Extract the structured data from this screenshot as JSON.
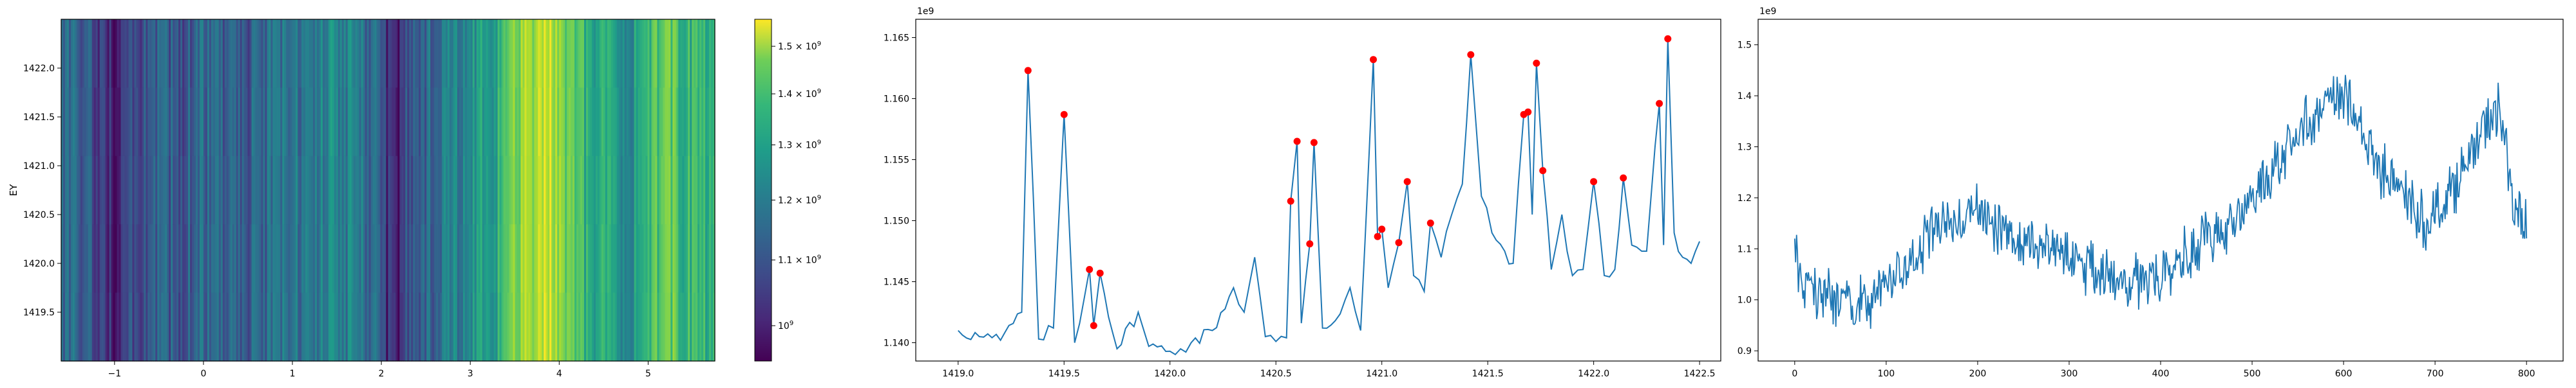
{
  "chart_data": [
    {
      "type": "heatmap",
      "ylabel": "EY",
      "x_ticks": [
        -1,
        0,
        1,
        2,
        3,
        4,
        5
      ],
      "y_ticks": [
        1419.5,
        1420.0,
        1420.5,
        1421.0,
        1421.5,
        1422.0
      ],
      "xlim": [
        -1.6,
        5.75
      ],
      "ylim": [
        1419.0,
        1422.5
      ],
      "colormap": "viridis",
      "column_intensity_profile": [
        {
          "x": -1.6,
          "v": 1.13
        },
        {
          "x": -1.2,
          "v": 1.07
        },
        {
          "x": -1.0,
          "v": 1.0
        },
        {
          "x": -0.6,
          "v": 1.09
        },
        {
          "x": -0.2,
          "v": 1.1
        },
        {
          "x": 0.0,
          "v": 1.12
        },
        {
          "x": 0.5,
          "v": 1.1
        },
        {
          "x": 1.0,
          "v": 1.15
        },
        {
          "x": 1.5,
          "v": 1.2
        },
        {
          "x": 2.0,
          "v": 1.1
        },
        {
          "x": 2.1,
          "v": 0.98
        },
        {
          "x": 2.4,
          "v": 1.1
        },
        {
          "x": 3.0,
          "v": 1.22
        },
        {
          "x": 3.3,
          "v": 1.27
        },
        {
          "x": 3.6,
          "v": 1.45
        },
        {
          "x": 3.9,
          "v": 1.5
        },
        {
          "x": 4.1,
          "v": 1.38
        },
        {
          "x": 4.3,
          "v": 1.3
        },
        {
          "x": 4.8,
          "v": 1.22
        },
        {
          "x": 5.2,
          "v": 1.4
        },
        {
          "x": 5.4,
          "v": 1.32
        },
        {
          "x": 5.75,
          "v": 1.3
        }
      ],
      "colorbar": {
        "min": 0.95,
        "max": 1.56,
        "scale": "log",
        "tick_values": [
          1.0,
          1.1,
          1.2,
          1.3,
          1.4,
          1.5
        ],
        "tick_labels": [
          "10^9",
          "1.1 × 10^9",
          "1.2 × 10^9",
          "1.3 × 10^9",
          "1.4 × 10^9",
          "1.5 × 10^9"
        ]
      }
    },
    {
      "type": "line",
      "offset_text": "1e9",
      "xlim": [
        1418.8,
        1422.6
      ],
      "ylim": [
        1.1385,
        1.1665
      ],
      "x_ticks": [
        1419.0,
        1419.5,
        1420.0,
        1420.5,
        1421.0,
        1421.5,
        1422.0,
        1422.5
      ],
      "y_ticks": [
        1.14,
        1.145,
        1.15,
        1.155,
        1.16,
        1.165
      ],
      "line_color": "#1f77b4",
      "marker_color": "#ff0000",
      "series_keypoints": [
        {
          "x": 1419.0,
          "y": 1.141
        },
        {
          "x": 1419.1,
          "y": 1.1405
        },
        {
          "x": 1419.2,
          "y": 1.1402
        },
        {
          "x": 1419.3,
          "y": 1.1425
        },
        {
          "x": 1419.33,
          "y": 1.1623
        },
        {
          "x": 1419.38,
          "y": 1.1403
        },
        {
          "x": 1419.45,
          "y": 1.1412
        },
        {
          "x": 1419.5,
          "y": 1.1587
        },
        {
          "x": 1419.55,
          "y": 1.14
        },
        {
          "x": 1419.62,
          "y": 1.146
        },
        {
          "x": 1419.64,
          "y": 1.1414
        },
        {
          "x": 1419.67,
          "y": 1.1457
        },
        {
          "x": 1419.75,
          "y": 1.1395
        },
        {
          "x": 1419.85,
          "y": 1.1425
        },
        {
          "x": 1419.9,
          "y": 1.1397
        },
        {
          "x": 1420.0,
          "y": 1.1393
        },
        {
          "x": 1420.05,
          "y": 1.1395
        },
        {
          "x": 1420.1,
          "y": 1.14
        },
        {
          "x": 1420.2,
          "y": 1.141
        },
        {
          "x": 1420.3,
          "y": 1.1445
        },
        {
          "x": 1420.35,
          "y": 1.1425
        },
        {
          "x": 1420.4,
          "y": 1.147
        },
        {
          "x": 1420.45,
          "y": 1.1405
        },
        {
          "x": 1420.5,
          "y": 1.1401
        },
        {
          "x": 1420.55,
          "y": 1.1404
        },
        {
          "x": 1420.57,
          "y": 1.1516
        },
        {
          "x": 1420.6,
          "y": 1.1565
        },
        {
          "x": 1420.62,
          "y": 1.1416
        },
        {
          "x": 1420.66,
          "y": 1.1481
        },
        {
          "x": 1420.68,
          "y": 1.1564
        },
        {
          "x": 1420.72,
          "y": 1.1412
        },
        {
          "x": 1420.78,
          "y": 1.1418
        },
        {
          "x": 1420.85,
          "y": 1.1445
        },
        {
          "x": 1420.9,
          "y": 1.141
        },
        {
          "x": 1420.96,
          "y": 1.1632
        },
        {
          "x": 1420.98,
          "y": 1.1487
        },
        {
          "x": 1421.0,
          "y": 1.1493
        },
        {
          "x": 1421.03,
          "y": 1.1445
        },
        {
          "x": 1421.08,
          "y": 1.1482
        },
        {
          "x": 1421.12,
          "y": 1.1532
        },
        {
          "x": 1421.15,
          "y": 1.1455
        },
        {
          "x": 1421.2,
          "y": 1.1442
        },
        {
          "x": 1421.23,
          "y": 1.1498
        },
        {
          "x": 1421.28,
          "y": 1.147
        },
        {
          "x": 1421.33,
          "y": 1.1505
        },
        {
          "x": 1421.38,
          "y": 1.153
        },
        {
          "x": 1421.42,
          "y": 1.1636
        },
        {
          "x": 1421.47,
          "y": 1.152
        },
        {
          "x": 1421.52,
          "y": 1.149
        },
        {
          "x": 1421.58,
          "y": 1.1475
        },
        {
          "x": 1421.62,
          "y": 1.1465
        },
        {
          "x": 1421.67,
          "y": 1.1587
        },
        {
          "x": 1421.69,
          "y": 1.1589
        },
        {
          "x": 1421.71,
          "y": 1.1505
        },
        {
          "x": 1421.73,
          "y": 1.1629
        },
        {
          "x": 1421.76,
          "y": 1.1541
        },
        {
          "x": 1421.8,
          "y": 1.146
        },
        {
          "x": 1421.85,
          "y": 1.1505
        },
        {
          "x": 1421.9,
          "y": 1.1455
        },
        {
          "x": 1421.95,
          "y": 1.146
        },
        {
          "x": 1422.0,
          "y": 1.1532
        },
        {
          "x": 1422.05,
          "y": 1.1455
        },
        {
          "x": 1422.1,
          "y": 1.146
        },
        {
          "x": 1422.14,
          "y": 1.1535
        },
        {
          "x": 1422.18,
          "y": 1.148
        },
        {
          "x": 1422.25,
          "y": 1.1475
        },
        {
          "x": 1422.31,
          "y": 1.1596
        },
        {
          "x": 1422.33,
          "y": 1.148
        },
        {
          "x": 1422.35,
          "y": 1.1649
        },
        {
          "x": 1422.38,
          "y": 1.149
        },
        {
          "x": 1422.42,
          "y": 1.147
        },
        {
          "x": 1422.46,
          "y": 1.1465
        },
        {
          "x": 1422.5,
          "y": 1.1483
        }
      ],
      "peaks": [
        {
          "x": 1419.33,
          "y": 1.1623
        },
        {
          "x": 1419.5,
          "y": 1.1587
        },
        {
          "x": 1419.62,
          "y": 1.146
        },
        {
          "x": 1419.64,
          "y": 1.1414
        },
        {
          "x": 1419.67,
          "y": 1.1457
        },
        {
          "x": 1420.57,
          "y": 1.1516
        },
        {
          "x": 1420.6,
          "y": 1.1565
        },
        {
          "x": 1420.66,
          "y": 1.1481
        },
        {
          "x": 1420.68,
          "y": 1.1564
        },
        {
          "x": 1420.96,
          "y": 1.1632
        },
        {
          "x": 1420.98,
          "y": 1.1487
        },
        {
          "x": 1421.0,
          "y": 1.1493
        },
        {
          "x": 1421.08,
          "y": 1.1482
        },
        {
          "x": 1421.12,
          "y": 1.1532
        },
        {
          "x": 1421.23,
          "y": 1.1498
        },
        {
          "x": 1421.42,
          "y": 1.1636
        },
        {
          "x": 1421.67,
          "y": 1.1587
        },
        {
          "x": 1421.69,
          "y": 1.1589
        },
        {
          "x": 1421.73,
          "y": 1.1629
        },
        {
          "x": 1421.76,
          "y": 1.1541
        },
        {
          "x": 1422.0,
          "y": 1.1532
        },
        {
          "x": 1422.14,
          "y": 1.1535
        },
        {
          "x": 1422.31,
          "y": 1.1596
        },
        {
          "x": 1422.35,
          "y": 1.1649
        }
      ]
    },
    {
      "type": "line",
      "offset_text": "1e9",
      "xlim": [
        -40,
        840
      ],
      "ylim": [
        0.88,
        1.55
      ],
      "x_ticks": [
        0,
        100,
        200,
        300,
        400,
        500,
        600,
        700,
        800
      ],
      "y_ticks": [
        0.9,
        1.0,
        1.1,
        1.2,
        1.3,
        1.4,
        1.5
      ],
      "line_color": "#1f77b4",
      "n_points": 800,
      "seed": 7,
      "amplitude": 0.045,
      "trend_keypoints": [
        {
          "x": 0,
          "y": 1.12
        },
        {
          "x": 5,
          "y": 1.03
        },
        {
          "x": 40,
          "y": 1.0
        },
        {
          "x": 80,
          "y": 0.99
        },
        {
          "x": 110,
          "y": 1.05
        },
        {
          "x": 140,
          "y": 1.1
        },
        {
          "x": 160,
          "y": 1.15
        },
        {
          "x": 200,
          "y": 1.17
        },
        {
          "x": 240,
          "y": 1.12
        },
        {
          "x": 300,
          "y": 1.09
        },
        {
          "x": 330,
          "y": 1.05
        },
        {
          "x": 360,
          "y": 1.03
        },
        {
          "x": 400,
          "y": 1.05
        },
        {
          "x": 440,
          "y": 1.11
        },
        {
          "x": 480,
          "y": 1.15
        },
        {
          "x": 500,
          "y": 1.2
        },
        {
          "x": 530,
          "y": 1.28
        },
        {
          "x": 560,
          "y": 1.35
        },
        {
          "x": 590,
          "y": 1.4
        },
        {
          "x": 610,
          "y": 1.38
        },
        {
          "x": 630,
          "y": 1.28
        },
        {
          "x": 660,
          "y": 1.22
        },
        {
          "x": 690,
          "y": 1.15
        },
        {
          "x": 720,
          "y": 1.22
        },
        {
          "x": 750,
          "y": 1.32
        },
        {
          "x": 770,
          "y": 1.38
        },
        {
          "x": 790,
          "y": 1.15
        },
        {
          "x": 800,
          "y": 1.17
        }
      ]
    }
  ]
}
